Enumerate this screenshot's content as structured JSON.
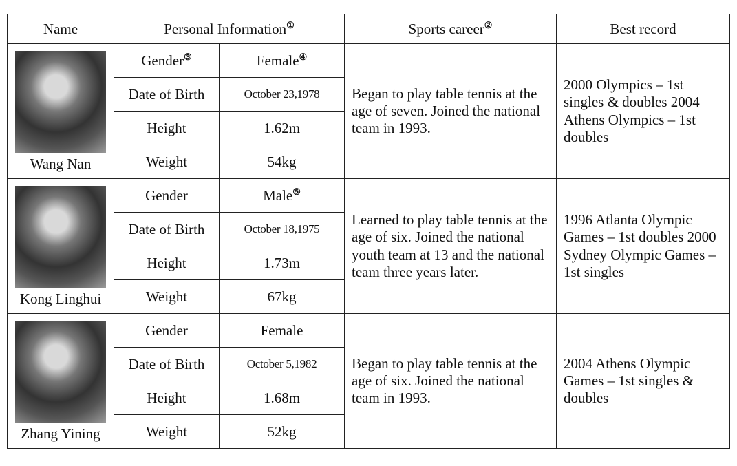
{
  "table": {
    "header": [
      {
        "text": "Name"
      },
      {
        "text": "Personal Information",
        "note": "①"
      },
      {
        "text": "Sports career",
        "note": "②"
      },
      {
        "text": "Best record"
      }
    ],
    "rows": [
      {
        "name": "Wang Nan",
        "info": [
          [
            {
              "text": "Gender",
              "note": "③"
            },
            {
              "text": "Female",
              "note": "④"
            }
          ],
          [
            {
              "text": "Date of Birth"
            },
            {
              "text": "October 23,1978"
            }
          ],
          [
            {
              "text": "Height"
            },
            {
              "text": "1.62m"
            }
          ],
          [
            {
              "text": "Weight"
            },
            {
              "text": "54kg"
            }
          ]
        ],
        "career": "Began to play table tennis at the age of seven. Joined the national team in 1993.",
        "record": "2000 Olympics – 1st singles & doubles 2004 Athens Olympics – 1st doubles"
      },
      {
        "name": "Kong Linghui",
        "info": [
          [
            {
              "text": "Gender"
            },
            {
              "text": "Male",
              "note": "⑤"
            }
          ],
          [
            {
              "text": "Date of Birth"
            },
            {
              "text": "October 18,1975"
            }
          ],
          [
            {
              "text": "Height"
            },
            {
              "text": "1.73m"
            }
          ],
          [
            {
              "text": "Weight"
            },
            {
              "text": "67kg"
            }
          ]
        ],
        "career": "Learned to play table tennis at the age of six. Joined the national youth team at 13 and the national team three years later.",
        "record": "1996 Atlanta Olympic Games – 1st doubles 2000 Sydney Olympic Games – 1st singles"
      },
      {
        "name": "Zhang Yining",
        "info": [
          [
            {
              "text": "Gender"
            },
            {
              "text": "Female"
            }
          ],
          [
            {
              "text": "Date of Birth"
            },
            {
              "text": "October 5,1982"
            }
          ],
          [
            {
              "text": "Height"
            },
            {
              "text": "1.68m"
            }
          ],
          [
            {
              "text": "Weight"
            },
            {
              "text": "52kg"
            }
          ]
        ],
        "career": "Began to play table tennis at the age of six. Joined the national team in 1993.",
        "record": "2004 Athens Olympic Games – 1st singles & doubles"
      }
    ]
  }
}
